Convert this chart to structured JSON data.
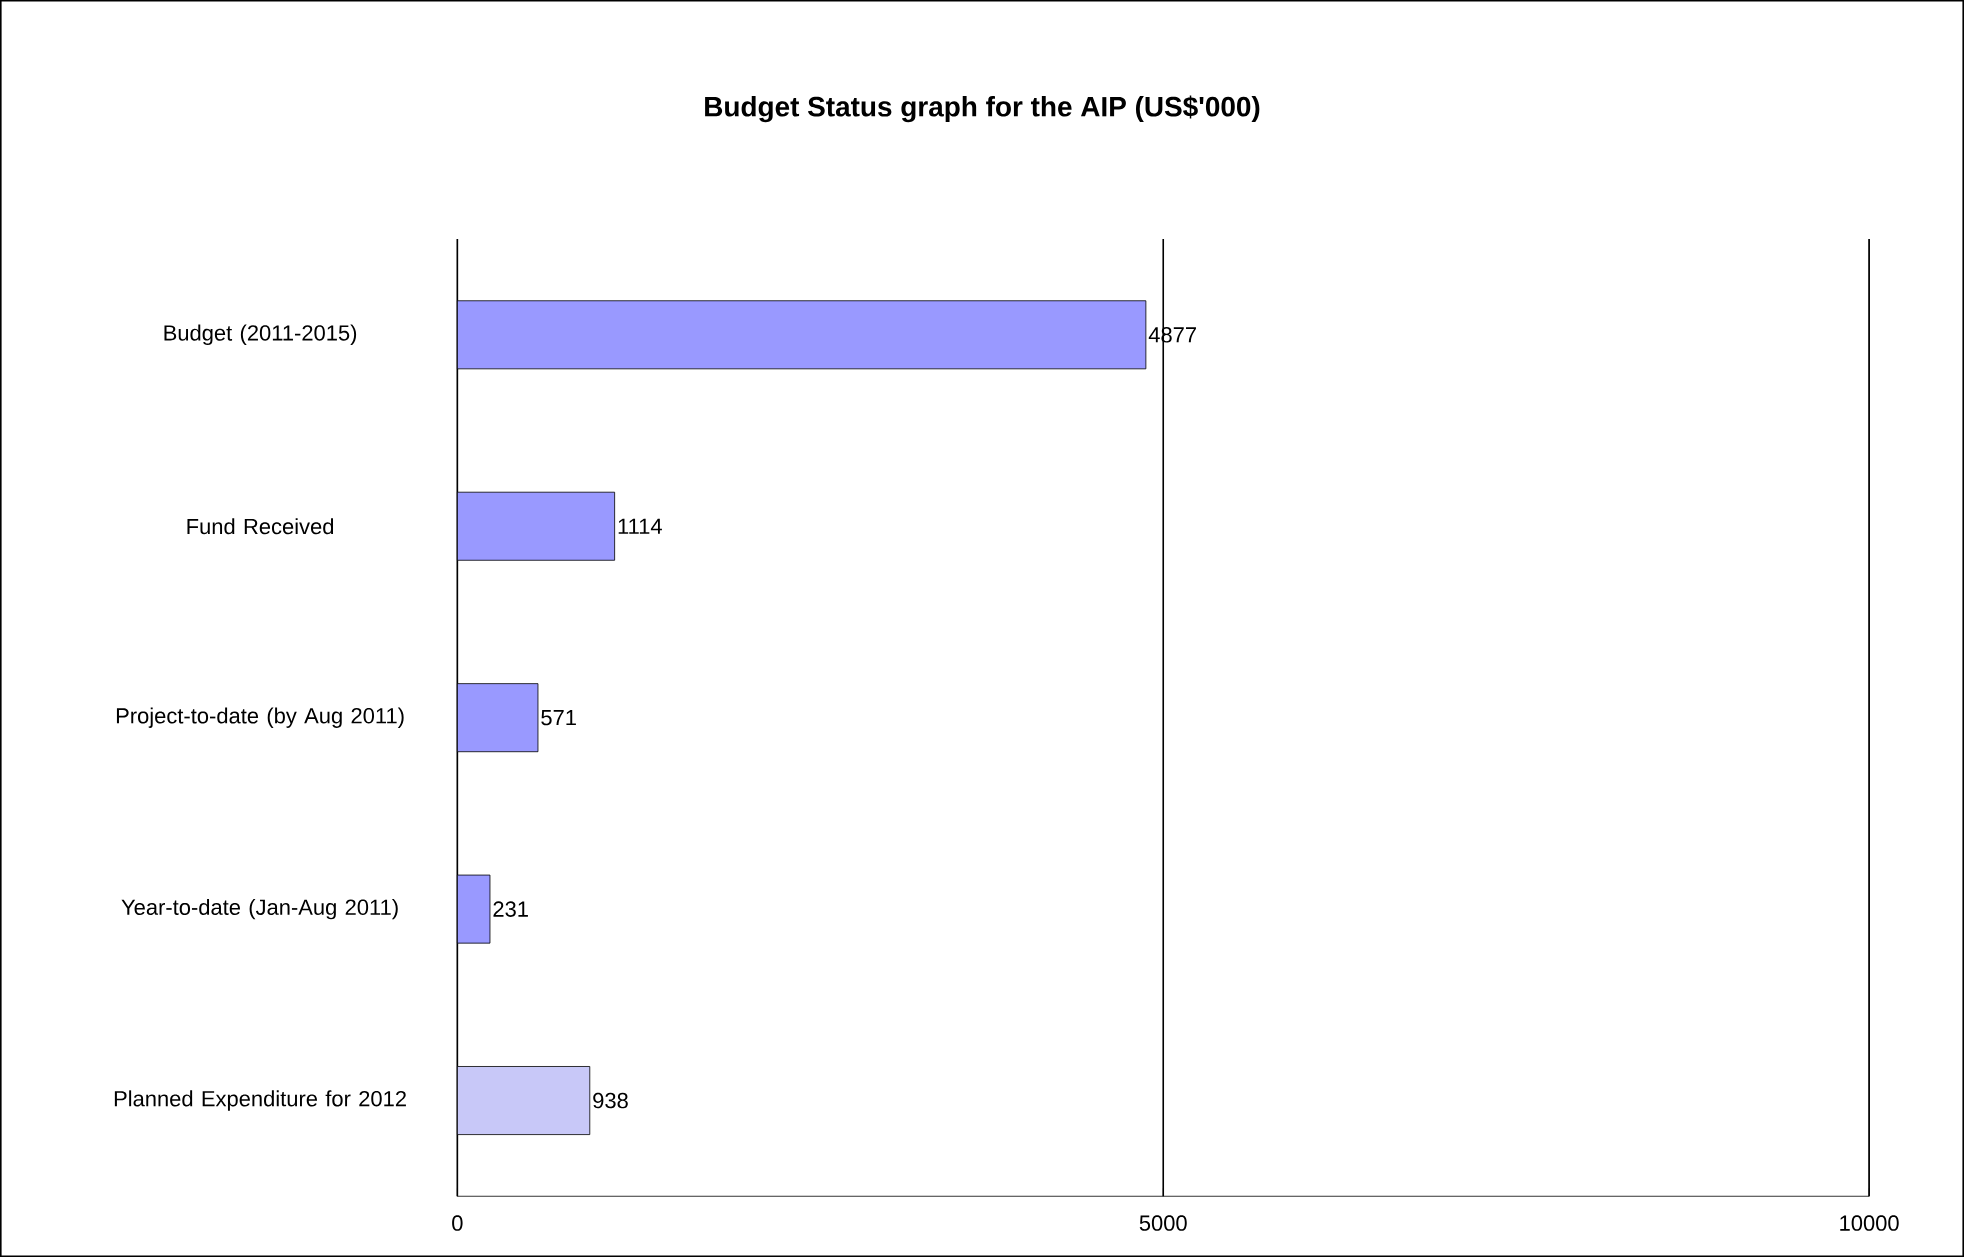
{
  "chart_data": {
    "type": "bar",
    "orientation": "horizontal",
    "title": "Budget Status graph for the AIP (US$'000)",
    "categories": [
      "Budget (2011-2015)",
      "Fund Received",
      "Project-to-date (by Aug 2011)",
      "Year-to-date (Jan-Aug 2011)",
      "Planned Expenditure for 2012"
    ],
    "values": [
      4877,
      1114,
      571,
      231,
      938
    ],
    "colors": [
      "#9999ff",
      "#9999ff",
      "#9999ff",
      "#9999ff",
      "#c8c8f8"
    ],
    "xlim": [
      0,
      10000
    ],
    "xticks": [
      0,
      5000,
      10000
    ],
    "grid": "x",
    "data_labels": true
  }
}
